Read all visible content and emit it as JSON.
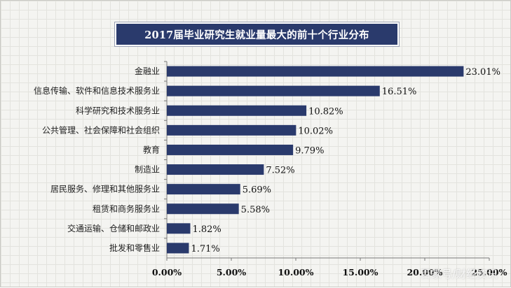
{
  "title": "2017届毕业研究生就业量最大的前十个行业分布",
  "watermark": "百家号/财经资讯",
  "colors": {
    "bar": "#2a3a6c",
    "title_bg": "#2a3a6c",
    "axis": "#777777"
  },
  "chart_data": {
    "type": "bar",
    "orientation": "horizontal",
    "title": "2017届毕业研究生就业量最大的前十个行业分布",
    "categories": [
      "金融业",
      "信息传输、软件和信息技术服务业",
      "科学研究和技术服务业",
      "公共管理、社会保障和社会组织",
      "教育",
      "制造业",
      "居民服务、修理和其他服务业",
      "租赁和商务服务业",
      "交通运输、仓储和邮政业",
      "批发和零售业"
    ],
    "values": [
      23.01,
      16.51,
      10.82,
      10.02,
      9.79,
      7.52,
      5.69,
      5.58,
      1.82,
      1.71
    ],
    "value_labels": [
      "23.01%",
      "16.51%",
      "10.82%",
      "10.02%",
      "9.79%",
      "7.52%",
      "5.69%",
      "5.58%",
      "1.82%",
      "1.71%"
    ],
    "xlim": [
      0,
      25
    ],
    "xticks": [
      0,
      5,
      10,
      15,
      20,
      25
    ],
    "xtick_labels": [
      "0.00%",
      "5.00%",
      "10.00%",
      "15.00%",
      "20.00%",
      "25.00%"
    ],
    "xlabel": "",
    "ylabel": "",
    "grid": false,
    "legend": "none"
  }
}
